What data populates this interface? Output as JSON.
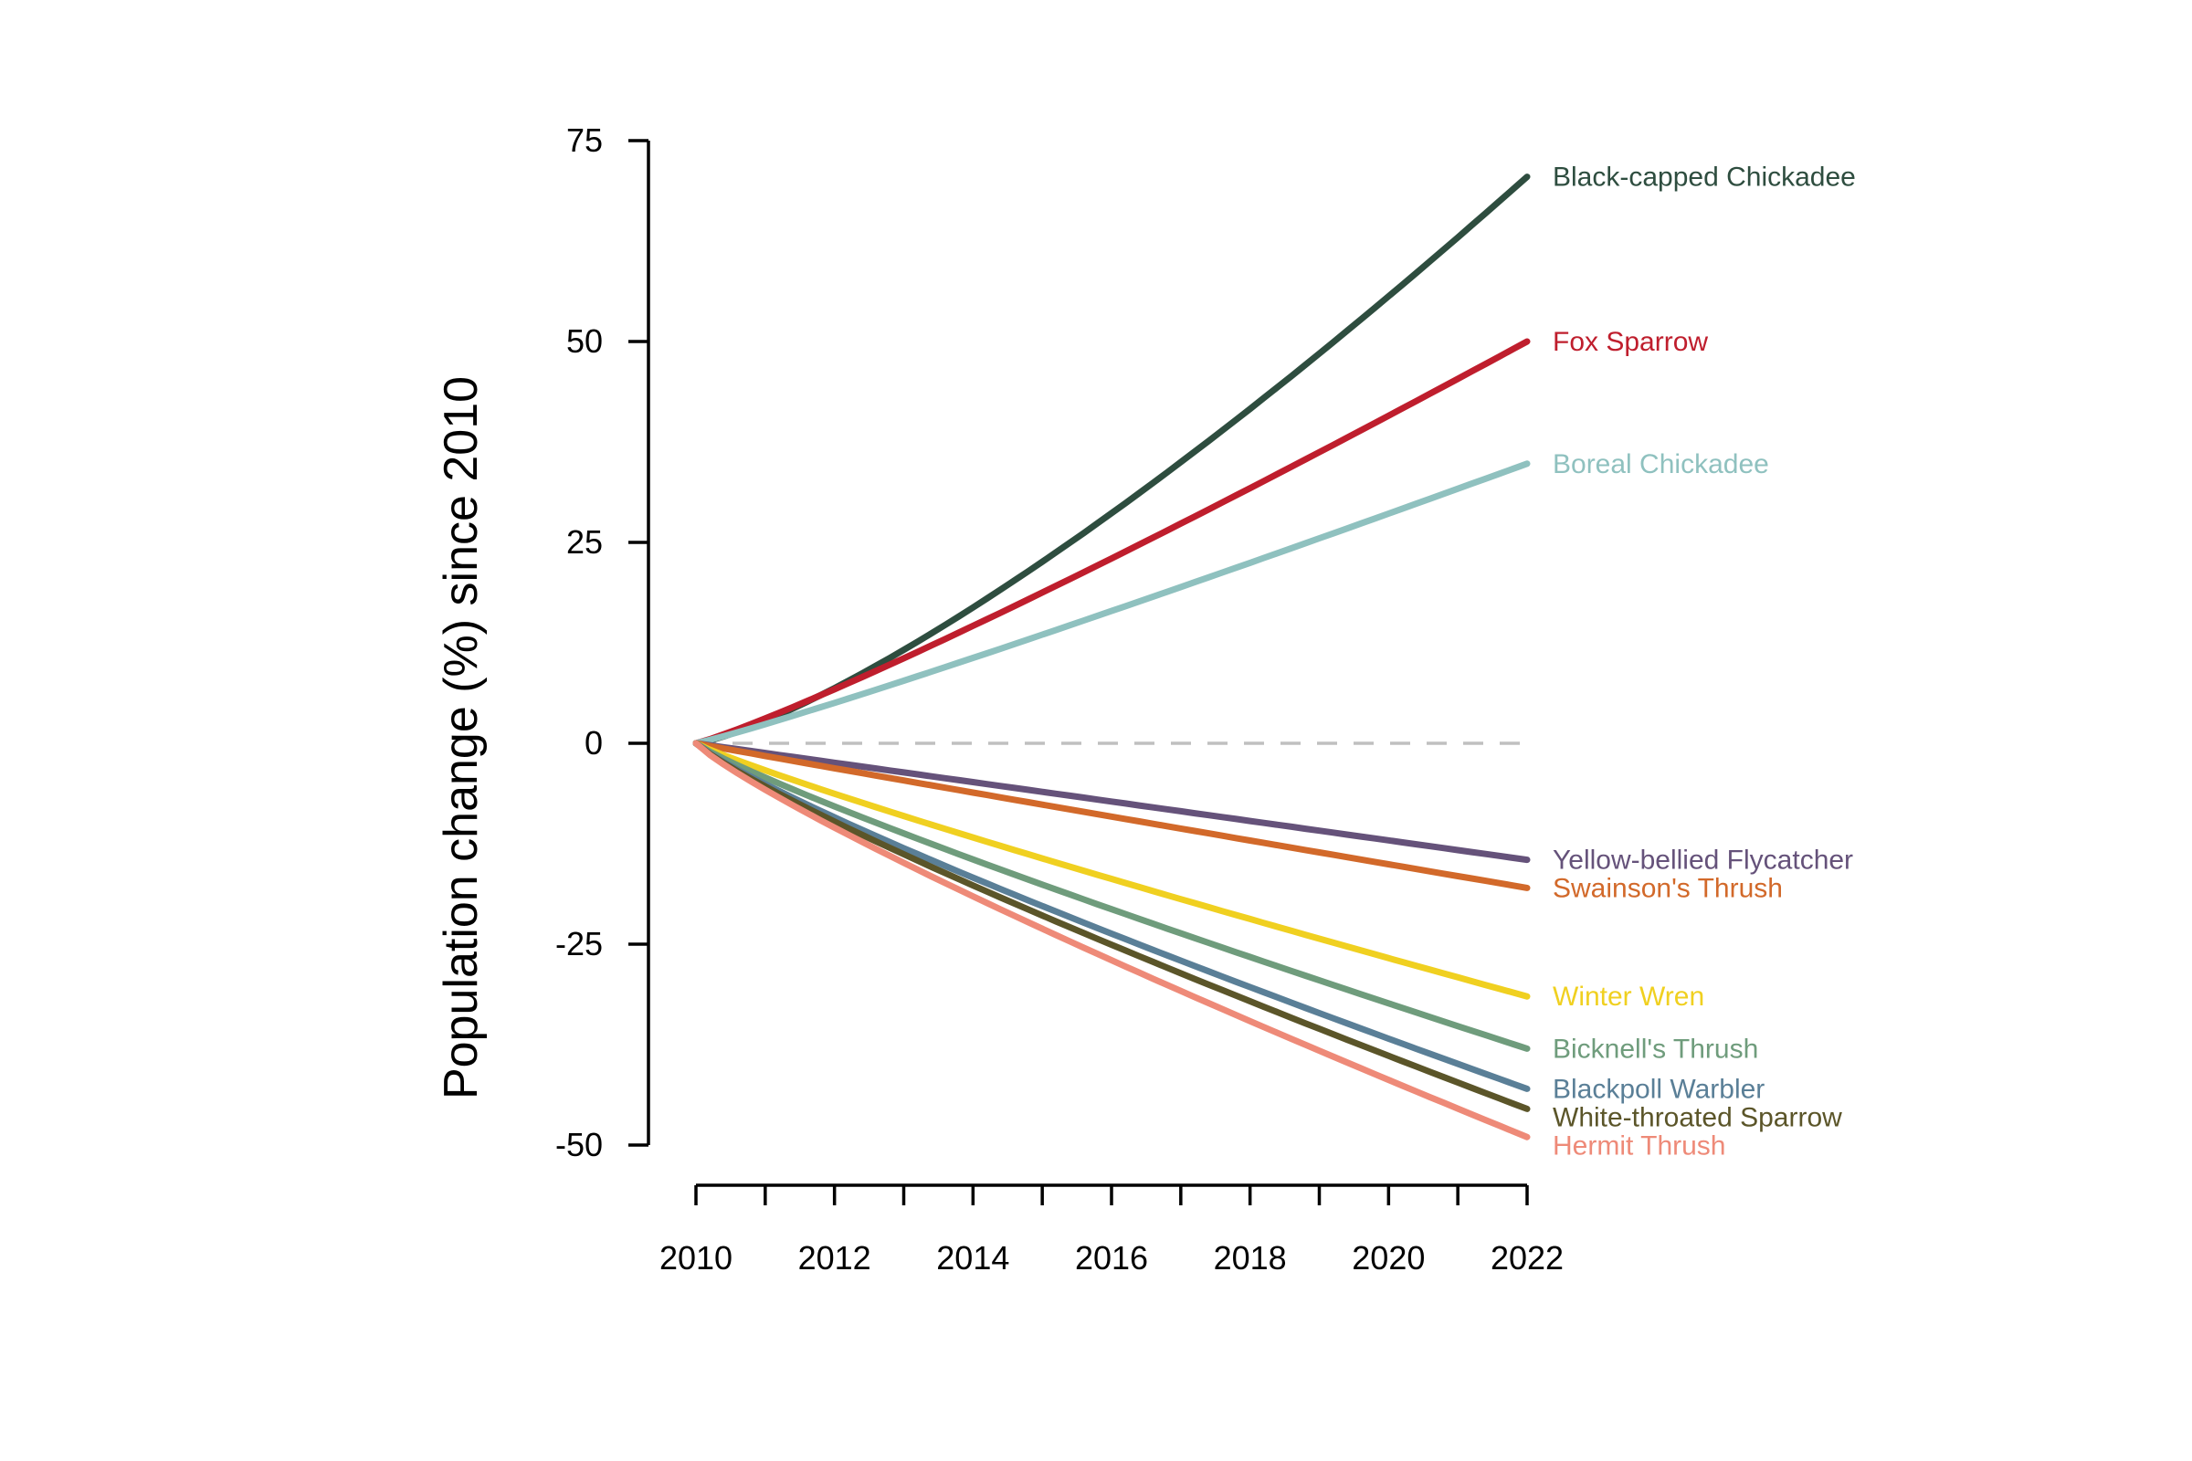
{
  "chart_data": {
    "type": "line",
    "title": "",
    "xlabel": "",
    "ylabel": "Population change (%) since 2010",
    "xlim": [
      2010,
      2022
    ],
    "ylim": [
      -50,
      75
    ],
    "x_ticks": [
      2010,
      2011,
      2012,
      2013,
      2014,
      2015,
      2016,
      2017,
      2018,
      2019,
      2020,
      2021,
      2022
    ],
    "x_tick_labels": [
      "2010",
      "",
      "2012",
      "",
      "2014",
      "",
      "2016",
      "",
      "2018",
      "",
      "2020",
      "",
      "2022"
    ],
    "y_ticks": [
      75,
      50,
      25,
      0,
      -25,
      -50
    ],
    "y_tick_labels": [
      "75",
      "50",
      "25",
      "0",
      "-25",
      "-50"
    ],
    "reference_line": {
      "y": 0,
      "style": "dashed",
      "color": "#c0c0c0"
    },
    "legend": "direct labels at line ends",
    "series": [
      {
        "name": "Black-capped Chickadee",
        "color": "#2e4d3f",
        "start": 0,
        "end": 70.5,
        "curvature": 1.3
      },
      {
        "name": "Fox Sparrow",
        "color": "#bf1e2d",
        "start": 0,
        "end": 50.0,
        "curvature": 1.12
      },
      {
        "name": "Boreal Chickadee",
        "color": "#8fc1bf",
        "start": 0,
        "end": 34.8,
        "curvature": 1.08
      },
      {
        "name": "Yellow-bellied Flycatcher",
        "color": "#65527a",
        "start": 0,
        "end": -14.5,
        "curvature": 1.0
      },
      {
        "name": "Swainson's Thrush",
        "color": "#d2692a",
        "start": 0,
        "end": -18.0,
        "curvature": 0.98
      },
      {
        "name": "Winter Wren",
        "color": "#f0d020",
        "start": 0,
        "end": -31.5,
        "curvature": 0.9
      },
      {
        "name": "Bicknell's Thrush",
        "color": "#6f9c7c",
        "start": 0,
        "end": -38.0,
        "curvature": 0.88
      },
      {
        "name": "Blackpoll Warbler",
        "color": "#5a7f97",
        "start": 0,
        "end": -43.0,
        "curvature": 0.86
      },
      {
        "name": "White-throated Sparrow",
        "color": "#5b5529",
        "start": 0,
        "end": -45.5,
        "curvature": 0.86
      },
      {
        "name": "Hermit Thrush",
        "color": "#ee8a78",
        "start": 0,
        "end": -49.0,
        "curvature": 0.86
      }
    ]
  }
}
